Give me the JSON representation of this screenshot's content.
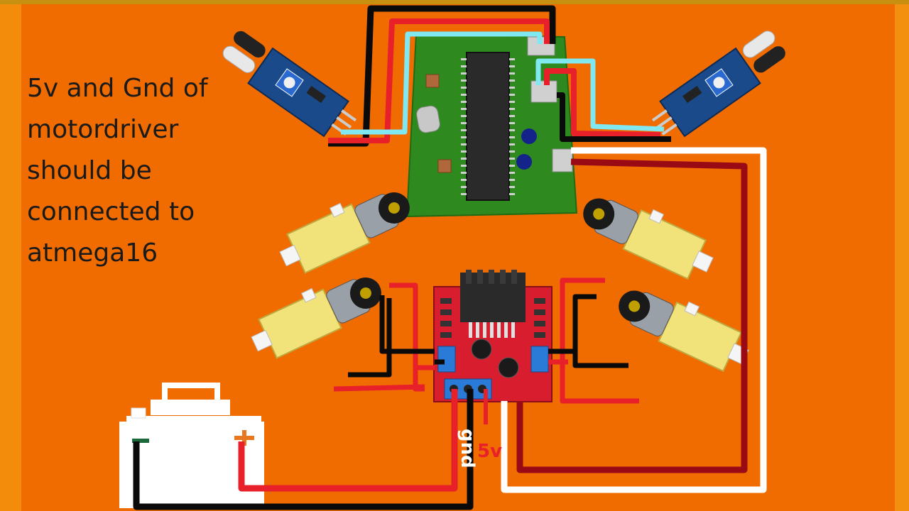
{
  "annotation": {
    "lines": [
      "5v and Gnd of",
      "motordriver",
      "should be",
      "connected to",
      "atmega16"
    ]
  },
  "wire_labels": {
    "gnd": "gnd",
    "five_volt": "5v"
  },
  "colors": {
    "background": "#f06c00",
    "wire_black": "#0a0a0a",
    "wire_red": "#e8202a",
    "wire_cyan": "#7fe8f0",
    "wire_white": "#ffffff",
    "wire_darkred": "#9a0a14",
    "pcb_green": "#2e8a1e",
    "driver_red": "#d81e2e",
    "motor_yellow": "#f2e27a",
    "sensor_blue": "#1a4a8a"
  }
}
